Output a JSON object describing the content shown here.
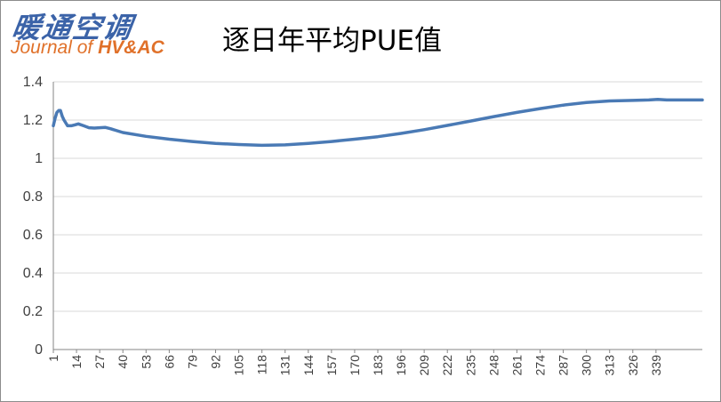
{
  "logo": {
    "chinese": "暖通空调",
    "english_prefix": "Journal of ",
    "english_strong": "HV&AC"
  },
  "chart_data": {
    "type": "line",
    "title": "逐日年平均PUE值",
    "xlabel": "",
    "ylabel": "",
    "ylim": [
      0,
      1.4
    ],
    "y_ticks": [
      "0",
      "0.2",
      "0.4",
      "0.6",
      "0.8",
      "1",
      "1.2",
      "1.4"
    ],
    "x_tick_labels": [
      "1",
      "14",
      "27",
      "40",
      "53",
      "66",
      "79",
      "92",
      "105",
      "118",
      "131",
      "144",
      "157",
      "170",
      "183",
      "196",
      "209",
      "222",
      "235",
      "248",
      "261",
      "274",
      "287",
      "300",
      "313",
      "326",
      "339"
    ],
    "xlim": [
      1,
      365
    ],
    "grid": "horizontal",
    "legend": "none",
    "line_color": "#4a7ab5",
    "series": [
      {
        "x": [
          1,
          2,
          3,
          4,
          5,
          6,
          7,
          9,
          11,
          13,
          15,
          18,
          21,
          24,
          27,
          30,
          33,
          40,
          53,
          66,
          79,
          92,
          105,
          118,
          131,
          144,
          157,
          170,
          183,
          196,
          209,
          222,
          235,
          248,
          261,
          274,
          287,
          300,
          313,
          326,
          335,
          340,
          345,
          350,
          355,
          365
        ],
        "y": [
          1.17,
          1.21,
          1.24,
          1.25,
          1.25,
          1.22,
          1.2,
          1.17,
          1.17,
          1.175,
          1.18,
          1.17,
          1.16,
          1.158,
          1.16,
          1.162,
          1.155,
          1.135,
          1.115,
          1.1,
          1.088,
          1.078,
          1.072,
          1.068,
          1.07,
          1.078,
          1.088,
          1.1,
          1.113,
          1.13,
          1.15,
          1.172,
          1.195,
          1.218,
          1.24,
          1.26,
          1.278,
          1.292,
          1.3,
          1.303,
          1.305,
          1.308,
          1.305,
          1.305,
          1.305,
          1.305
        ]
      }
    ]
  }
}
